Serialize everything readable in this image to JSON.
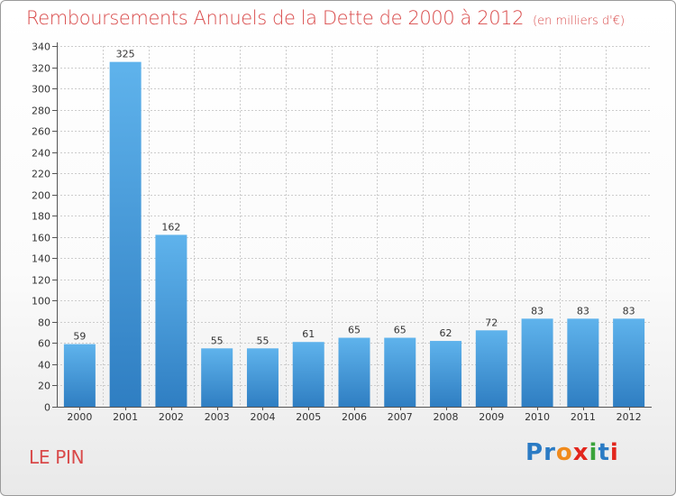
{
  "header": {
    "title": "Remboursements Annuels de la Dette de 2000 à 2012",
    "unit": "(en milliers d'€)"
  },
  "location": "LE PIN",
  "brand": {
    "name": "Proxiti",
    "letters": [
      {
        "ch": "P",
        "color": "#2b7bc4"
      },
      {
        "ch": "r",
        "color": "#2b7bc4"
      },
      {
        "ch": "o",
        "color": "#f08a1c"
      },
      {
        "ch": "x",
        "color": "#e2261d"
      },
      {
        "ch": "i",
        "color": "#3aa33a"
      },
      {
        "ch": "t",
        "color": "#2b7bc4"
      },
      {
        "ch": "i",
        "color": "#e2261d"
      }
    ]
  },
  "colors": {
    "bar_top": "#5fb3ec",
    "bar_bottom": "#2f7ec2",
    "grid": "#cccccc",
    "axis": "#555555",
    "text": "#333333",
    "accent": "#d94a4a"
  },
  "chart_data": {
    "type": "bar",
    "categories": [
      "2000",
      "2001",
      "2002",
      "2003",
      "2004",
      "2005",
      "2006",
      "2007",
      "2008",
      "2009",
      "2010",
      "2011",
      "2012"
    ],
    "values": [
      59,
      325,
      162,
      55,
      55,
      61,
      65,
      65,
      62,
      72,
      83,
      83,
      83
    ],
    "ylim": [
      0,
      340
    ],
    "yticks": [
      0,
      20,
      40,
      60,
      80,
      100,
      120,
      140,
      160,
      180,
      200,
      220,
      240,
      260,
      280,
      300,
      320,
      340
    ],
    "grid": true,
    "xlabel": "",
    "ylabel": ""
  }
}
